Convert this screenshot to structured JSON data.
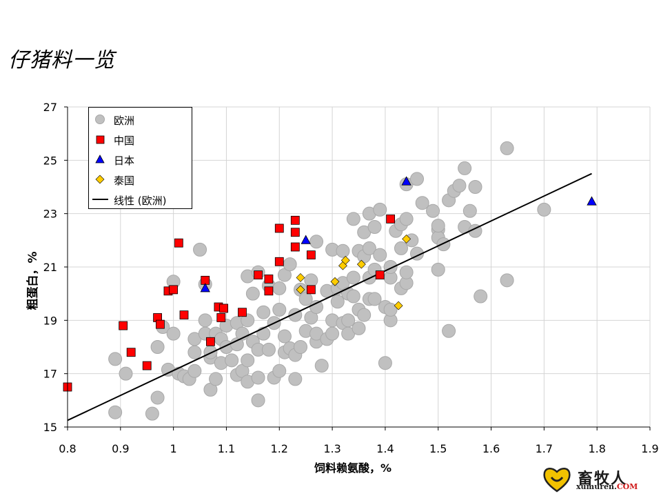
{
  "slide": {
    "title": "仔猪料一览"
  },
  "logo": {
    "cn": "畜牧人",
    "en_main": "xumuren.",
    "en_tld": "COM"
  },
  "chart_data": {
    "type": "scatter",
    "title": "",
    "xlabel": "饲料赖氨酸，%",
    "ylabel": "粗蛋白，%",
    "xlim": [
      0.8,
      1.9
    ],
    "ylim": [
      15,
      27
    ],
    "x_ticks": [
      "0.8",
      "0.9",
      "1",
      "1.1",
      "1.2",
      "1.3",
      "1.4",
      "1.5",
      "1.6",
      "1.7",
      "1.8",
      "1.9"
    ],
    "y_ticks": [
      "15",
      "17",
      "19",
      "21",
      "23",
      "25",
      "27"
    ],
    "grid": true,
    "legend_position": "top-left",
    "colors": {
      "europe": "#c0c0c0",
      "china": "#ff0000",
      "japan": "#0000ff",
      "thailand": "#ffcc00",
      "trend": "#000000"
    },
    "legend": [
      "欧洲",
      "中国",
      "日本",
      "泰国",
      "线性 (欧洲)"
    ],
    "series": [
      {
        "name": "欧洲",
        "marker": "circle",
        "points": [
          [
            0.89,
            17.55
          ],
          [
            0.91,
            17.0
          ],
          [
            0.89,
            15.55
          ],
          [
            0.96,
            15.5
          ],
          [
            0.97,
            16.1
          ],
          [
            0.97,
            18.0
          ],
          [
            0.98,
            18.75
          ],
          [
            0.99,
            17.15
          ],
          [
            1.0,
            18.5
          ],
          [
            1.01,
            17.0
          ],
          [
            1.0,
            20.45
          ],
          [
            1.02,
            16.9
          ],
          [
            1.03,
            16.8
          ],
          [
            1.04,
            17.1
          ],
          [
            1.04,
            17.8
          ],
          [
            1.04,
            18.3
          ],
          [
            1.05,
            21.65
          ],
          [
            1.06,
            20.35
          ],
          [
            1.06,
            19.0
          ],
          [
            1.06,
            18.5
          ],
          [
            1.07,
            17.6
          ],
          [
            1.07,
            16.4
          ],
          [
            1.07,
            17.8
          ],
          [
            1.08,
            18.5
          ],
          [
            1.08,
            16.8
          ],
          [
            1.09,
            17.4
          ],
          [
            1.09,
            18.3
          ],
          [
            1.1,
            18.0
          ],
          [
            1.1,
            18.8
          ],
          [
            1.11,
            17.5
          ],
          [
            1.12,
            16.95
          ],
          [
            1.12,
            18.1
          ],
          [
            1.12,
            18.9
          ],
          [
            1.13,
            17.1
          ],
          [
            1.13,
            18.5
          ],
          [
            1.14,
            16.7
          ],
          [
            1.14,
            17.5
          ],
          [
            1.14,
            19.0
          ],
          [
            1.14,
            20.65
          ],
          [
            1.15,
            18.2
          ],
          [
            1.15,
            20.0
          ],
          [
            1.16,
            20.8
          ],
          [
            1.16,
            16.0
          ],
          [
            1.16,
            16.85
          ],
          [
            1.16,
            17.9
          ],
          [
            1.17,
            18.5
          ],
          [
            1.17,
            19.3
          ],
          [
            1.18,
            20.3
          ],
          [
            1.18,
            17.9
          ],
          [
            1.19,
            16.85
          ],
          [
            1.19,
            18.9
          ],
          [
            1.2,
            17.1
          ],
          [
            1.2,
            19.4
          ],
          [
            1.2,
            20.2
          ],
          [
            1.21,
            17.8
          ],
          [
            1.21,
            18.4
          ],
          [
            1.21,
            20.7
          ],
          [
            1.22,
            21.1
          ],
          [
            1.22,
            17.95
          ],
          [
            1.23,
            17.7
          ],
          [
            1.23,
            19.2
          ],
          [
            1.23,
            16.8
          ],
          [
            1.24,
            18.0
          ],
          [
            1.24,
            20.15
          ],
          [
            1.25,
            19.8
          ],
          [
            1.25,
            18.6
          ],
          [
            1.26,
            20.5
          ],
          [
            1.26,
            19.1
          ],
          [
            1.27,
            21.95
          ],
          [
            1.27,
            18.2
          ],
          [
            1.27,
            18.5
          ],
          [
            1.27,
            19.5
          ],
          [
            1.28,
            17.3
          ],
          [
            1.29,
            20.1
          ],
          [
            1.29,
            18.3
          ],
          [
            1.3,
            18.5
          ],
          [
            1.3,
            19.0
          ],
          [
            1.3,
            21.65
          ],
          [
            1.31,
            19.7
          ],
          [
            1.31,
            20.2
          ],
          [
            1.32,
            20.4
          ],
          [
            1.32,
            21.6
          ],
          [
            1.32,
            18.9
          ],
          [
            1.33,
            19.0
          ],
          [
            1.33,
            18.5
          ],
          [
            1.33,
            20.0
          ],
          [
            1.34,
            20.6
          ],
          [
            1.34,
            22.8
          ],
          [
            1.34,
            19.9
          ],
          [
            1.35,
            21.6
          ],
          [
            1.35,
            19.4
          ],
          [
            1.35,
            18.7
          ],
          [
            1.36,
            21.4
          ],
          [
            1.36,
            22.3
          ],
          [
            1.36,
            19.2
          ],
          [
            1.37,
            21.7
          ],
          [
            1.37,
            19.8
          ],
          [
            1.37,
            20.6
          ],
          [
            1.37,
            23.0
          ],
          [
            1.38,
            22.5
          ],
          [
            1.38,
            19.8
          ],
          [
            1.38,
            20.9
          ],
          [
            1.39,
            23.15
          ],
          [
            1.39,
            21.45
          ],
          [
            1.4,
            19.5
          ],
          [
            1.4,
            17.4
          ],
          [
            1.41,
            20.6
          ],
          [
            1.41,
            19.0
          ],
          [
            1.41,
            19.4
          ],
          [
            1.41,
            21.0
          ],
          [
            1.42,
            22.35
          ],
          [
            1.43,
            21.7
          ],
          [
            1.43,
            20.2
          ],
          [
            1.43,
            22.6
          ],
          [
            1.44,
            20.4
          ],
          [
            1.44,
            20.8
          ],
          [
            1.44,
            22.8
          ],
          [
            1.45,
            22.0
          ],
          [
            1.44,
            24.1
          ],
          [
            1.46,
            24.3
          ],
          [
            1.46,
            21.5
          ],
          [
            1.47,
            23.4
          ],
          [
            1.49,
            23.1
          ],
          [
            1.5,
            22.4
          ],
          [
            1.5,
            22.1
          ],
          [
            1.5,
            20.9
          ],
          [
            1.51,
            21.85
          ],
          [
            1.5,
            22.55
          ],
          [
            1.52,
            18.6
          ],
          [
            1.52,
            23.5
          ],
          [
            1.53,
            23.85
          ],
          [
            1.54,
            24.05
          ],
          [
            1.55,
            22.5
          ],
          [
            1.55,
            24.7
          ],
          [
            1.56,
            23.1
          ],
          [
            1.57,
            22.35
          ],
          [
            1.57,
            24.0
          ],
          [
            1.58,
            19.9
          ],
          [
            1.63,
            25.45
          ],
          [
            1.63,
            20.5
          ],
          [
            1.7,
            23.15
          ]
        ]
      },
      {
        "name": "中国",
        "marker": "square",
        "points": [
          [
            0.8,
            16.5
          ],
          [
            0.905,
            18.8
          ],
          [
            0.92,
            17.8
          ],
          [
            0.95,
            17.3
          ],
          [
            0.97,
            19.1
          ],
          [
            0.975,
            18.85
          ],
          [
            0.99,
            20.1
          ],
          [
            1.0,
            20.15
          ],
          [
            1.01,
            21.9
          ],
          [
            1.02,
            19.2
          ],
          [
            1.06,
            20.5
          ],
          [
            1.07,
            18.2
          ],
          [
            1.085,
            19.5
          ],
          [
            1.09,
            19.1
          ],
          [
            1.095,
            19.45
          ],
          [
            1.13,
            19.3
          ],
          [
            1.16,
            20.7
          ],
          [
            1.18,
            20.1
          ],
          [
            1.18,
            20.55
          ],
          [
            1.2,
            21.2
          ],
          [
            1.2,
            22.45
          ],
          [
            1.23,
            22.75
          ],
          [
            1.23,
            22.3
          ],
          [
            1.23,
            21.75
          ],
          [
            1.26,
            20.15
          ],
          [
            1.26,
            21.45
          ],
          [
            1.39,
            20.7
          ],
          [
            1.41,
            22.8
          ]
        ]
      },
      {
        "name": "日本",
        "marker": "triangle",
        "points": [
          [
            1.06,
            20.2
          ],
          [
            1.25,
            22.0
          ],
          [
            1.44,
            24.2
          ],
          [
            1.79,
            23.45
          ]
        ]
      },
      {
        "name": "泰国",
        "marker": "diamond",
        "points": [
          [
            1.24,
            20.6
          ],
          [
            1.24,
            20.15
          ],
          [
            1.305,
            20.45
          ],
          [
            1.32,
            21.05
          ],
          [
            1.325,
            21.25
          ],
          [
            1.355,
            21.1
          ],
          [
            1.425,
            19.55
          ],
          [
            1.44,
            22.05
          ]
        ]
      }
    ],
    "trendline": {
      "name": "线性 (欧洲)",
      "type": "linear",
      "from": [
        0.8,
        15.25
      ],
      "to": [
        1.79,
        24.5
      ]
    }
  }
}
